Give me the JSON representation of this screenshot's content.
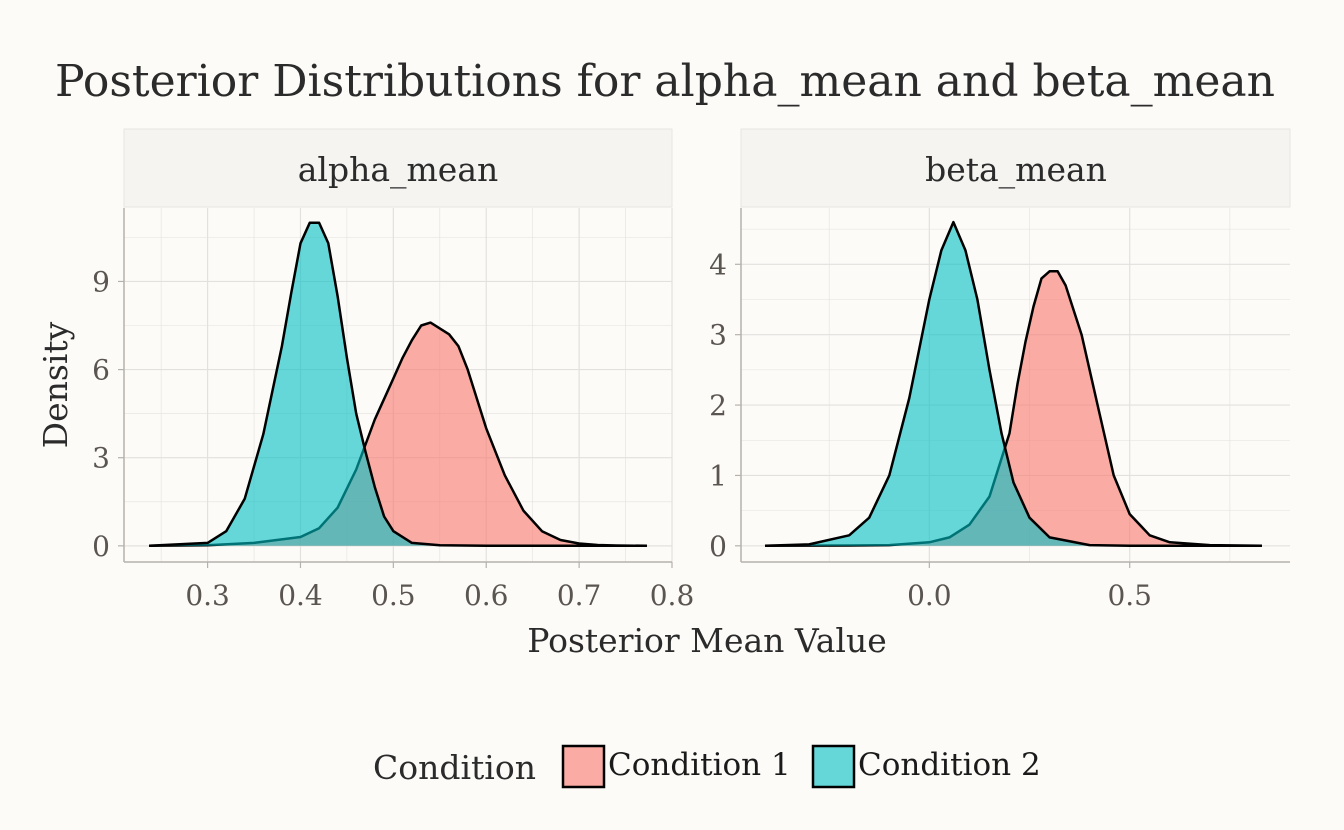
{
  "chart_data": {
    "type": "area",
    "title": "Posterior Distributions for alpha_mean and beta_mean",
    "xlabel": "Posterior Mean Value",
    "ylabel": "Density",
    "legend": {
      "title": "Condition",
      "placement": "bottom",
      "entries": [
        {
          "label": "Condition 1",
          "color": "#f8766d"
        },
        {
          "label": "Condition 2",
          "color": "#00bfc4"
        }
      ]
    },
    "colors": {
      "background": "#fcfbf8",
      "strip": "#f5f4f1",
      "grid": "#e3e1dd",
      "outline": "#000000"
    },
    "grid": true,
    "fill_opacity": 0.6,
    "facets": [
      {
        "name": "alpha_mean",
        "xlim": [
          0.21,
          0.8
        ],
        "ylim": [
          -0.55,
          11.5
        ],
        "xticks": [
          0.3,
          0.4,
          0.5,
          0.6,
          0.7,
          0.8
        ],
        "xtick_labels": [
          "0.3",
          "0.4",
          "0.5",
          "0.6",
          "0.7",
          "0.8"
        ],
        "yticks": [
          0,
          3,
          6,
          9
        ],
        "ytick_labels": [
          "0",
          "3",
          "6",
          "9"
        ],
        "series": [
          {
            "name": "Condition 1",
            "x": [
              0.237,
              0.3,
              0.35,
              0.4,
              0.42,
              0.44,
              0.46,
              0.48,
              0.5,
              0.51,
              0.52,
              0.53,
              0.54,
              0.55,
              0.56,
              0.57,
              0.58,
              0.6,
              0.62,
              0.64,
              0.66,
              0.68,
              0.7,
              0.72,
              0.74,
              0.773
            ],
            "y": [
              0,
              0.02,
              0.1,
              0.3,
              0.6,
              1.3,
              2.6,
              4.3,
              5.7,
              6.4,
              7.0,
              7.5,
              7.6,
              7.4,
              7.2,
              6.8,
              6.0,
              4.0,
              2.4,
              1.2,
              0.5,
              0.2,
              0.08,
              0.03,
              0.01,
              0
            ]
          },
          {
            "name": "Condition 2",
            "x": [
              0.237,
              0.3,
              0.32,
              0.34,
              0.36,
              0.38,
              0.39,
              0.4,
              0.41,
              0.42,
              0.43,
              0.44,
              0.45,
              0.46,
              0.47,
              0.48,
              0.49,
              0.5,
              0.52,
              0.55,
              0.6,
              0.773
            ],
            "y": [
              0,
              0.1,
              0.5,
              1.6,
              3.8,
              6.8,
              8.6,
              10.3,
              11.0,
              11.0,
              10.3,
              8.5,
              6.4,
              4.5,
              3.2,
              2.0,
              1.0,
              0.5,
              0.1,
              0.02,
              0,
              0
            ]
          }
        ]
      },
      {
        "name": "beta_mean",
        "xlim": [
          -0.47,
          0.9
        ],
        "ylim": [
          -0.23,
          4.8
        ],
        "xticks": [
          0.0,
          0.5
        ],
        "xtick_labels": [
          "0.0",
          "0.5"
        ],
        "yticks": [
          0,
          1,
          2,
          3,
          4
        ],
        "ytick_labels": [
          "0",
          "1",
          "2",
          "3",
          "4"
        ],
        "series": [
          {
            "name": "Condition 1",
            "x": [
              -0.41,
              -0.2,
              -0.1,
              0.0,
              0.05,
              0.1,
              0.15,
              0.2,
              0.22,
              0.24,
              0.26,
              0.28,
              0.3,
              0.32,
              0.34,
              0.38,
              0.42,
              0.46,
              0.5,
              0.55,
              0.6,
              0.7,
              0.83
            ],
            "y": [
              0,
              0.005,
              0.01,
              0.05,
              0.12,
              0.3,
              0.7,
              1.6,
              2.3,
              2.9,
              3.4,
              3.8,
              3.9,
              3.9,
              3.7,
              3.0,
              2.0,
              1.0,
              0.45,
              0.15,
              0.05,
              0.01,
              0
            ]
          },
          {
            "name": "Condition 2",
            "x": [
              -0.41,
              -0.3,
              -0.2,
              -0.15,
              -0.1,
              -0.05,
              0.0,
              0.03,
              0.06,
              0.09,
              0.12,
              0.15,
              0.18,
              0.21,
              0.25,
              0.3,
              0.4,
              0.5,
              0.83
            ],
            "y": [
              0,
              0.02,
              0.15,
              0.4,
              1.0,
              2.1,
              3.5,
              4.2,
              4.6,
              4.2,
              3.5,
              2.5,
              1.6,
              0.9,
              0.4,
              0.12,
              0.01,
              0,
              0
            ]
          }
        ]
      }
    ]
  }
}
